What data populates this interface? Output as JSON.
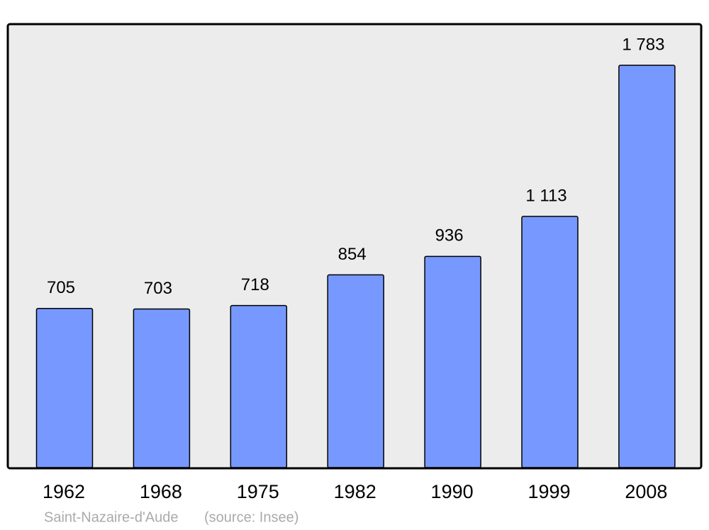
{
  "chart_data": {
    "type": "bar",
    "categories": [
      "1962",
      "1968",
      "1975",
      "1982",
      "1990",
      "1999",
      "2008"
    ],
    "values": [
      705,
      703,
      718,
      854,
      936,
      1113,
      1783
    ],
    "value_labels": [
      "705",
      "703",
      "718",
      "854",
      "936",
      "1 113",
      "1 783"
    ],
    "color": "#7799ff",
    "subtitle": "Saint-Nazaire-d'Aude",
    "source": "(source: Insee)"
  }
}
